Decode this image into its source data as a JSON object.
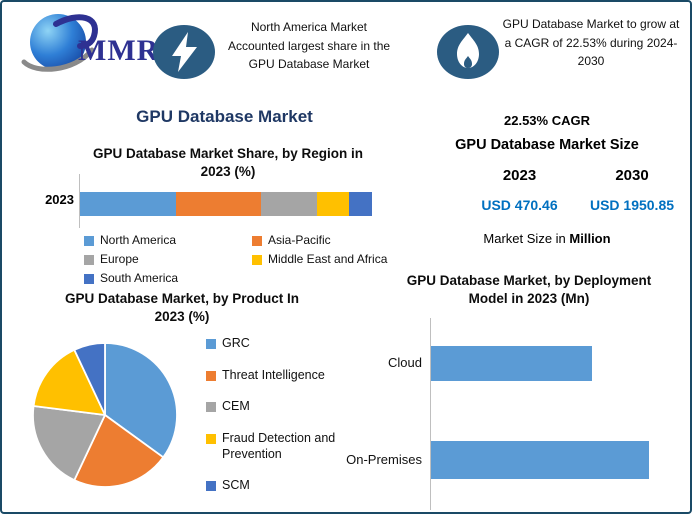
{
  "colors": {
    "border": "#1A4A66",
    "navy_title": "#1F3864",
    "value_blue": "#0070C0",
    "icon_bg": "#2B5C82",
    "palette": [
      "#5B9BD5",
      "#ED7D31",
      "#A5A5A5",
      "#FFC000",
      "#4472C4"
    ]
  },
  "header": {
    "logo_text": "MMR",
    "logo_icon": "globe-icon",
    "left_callout": {
      "icon": "lightning-icon",
      "text": "North America Market\nAccounted largest share in the\nGPU Database Market"
    },
    "right_callout": {
      "icon": "flame-icon",
      "text": "GPU Database Market to grow at\na CAGR of 22.53% during 2024-\n2030"
    }
  },
  "main_title": "GPU Database Market",
  "market_size_panel": {
    "cagr": "22.53% CAGR",
    "title": "GPU Database Market Size",
    "start_year": "2023",
    "end_year": "2030",
    "start_value": "USD 470.46",
    "end_value": "USD 1950.85",
    "caption_regular": "Market Size in ",
    "caption_bold": "Million"
  },
  "chart_data": [
    {
      "id": "region-share",
      "type": "bar",
      "subtype": "stacked-horizontal",
      "title": "GPU Database Market Share, by Region in\n2023 (%)",
      "categories": [
        "2023"
      ],
      "series": [
        {
          "name": "North America",
          "color": "#5B9BD5",
          "values": [
            33
          ]
        },
        {
          "name": "Asia-Pacific",
          "color": "#ED7D31",
          "values": [
            29
          ]
        },
        {
          "name": "Europe",
          "color": "#A5A5A5",
          "values": [
            19
          ]
        },
        {
          "name": "Middle East and Africa",
          "color": "#FFC000",
          "values": [
            11
          ]
        },
        {
          "name": "South America",
          "color": "#4472C4",
          "values": [
            8
          ]
        }
      ],
      "xlim": [
        0,
        100
      ],
      "grid": false,
      "legend_position": "bottom"
    },
    {
      "id": "product-share",
      "type": "pie",
      "title": "GPU Database Market, by Product In\n2023 (%)",
      "labels": [
        "GRC",
        "Threat Intelligence",
        "CEM",
        "Fraud Detection and Prevention",
        "SCM"
      ],
      "values": [
        35,
        22,
        20,
        16,
        7
      ],
      "colors": [
        "#5B9BD5",
        "#ED7D31",
        "#A5A5A5",
        "#FFC000",
        "#4472C4"
      ],
      "start_angle_deg": 0,
      "direction": "clockwise",
      "legend_position": "right"
    },
    {
      "id": "deployment-model",
      "type": "bar",
      "subtype": "horizontal",
      "title": "GPU Database Market, by Deployment\nModel in 2023 (Mn)",
      "categories": [
        "Cloud",
        "On-Premises"
      ],
      "values": [
        200,
        270
      ],
      "values_estimated_from_bar_lengths": true,
      "bar_color": "#5B9BD5",
      "xlim": [
        0,
        285
      ],
      "grid": false,
      "legend_position": "none"
    }
  ]
}
